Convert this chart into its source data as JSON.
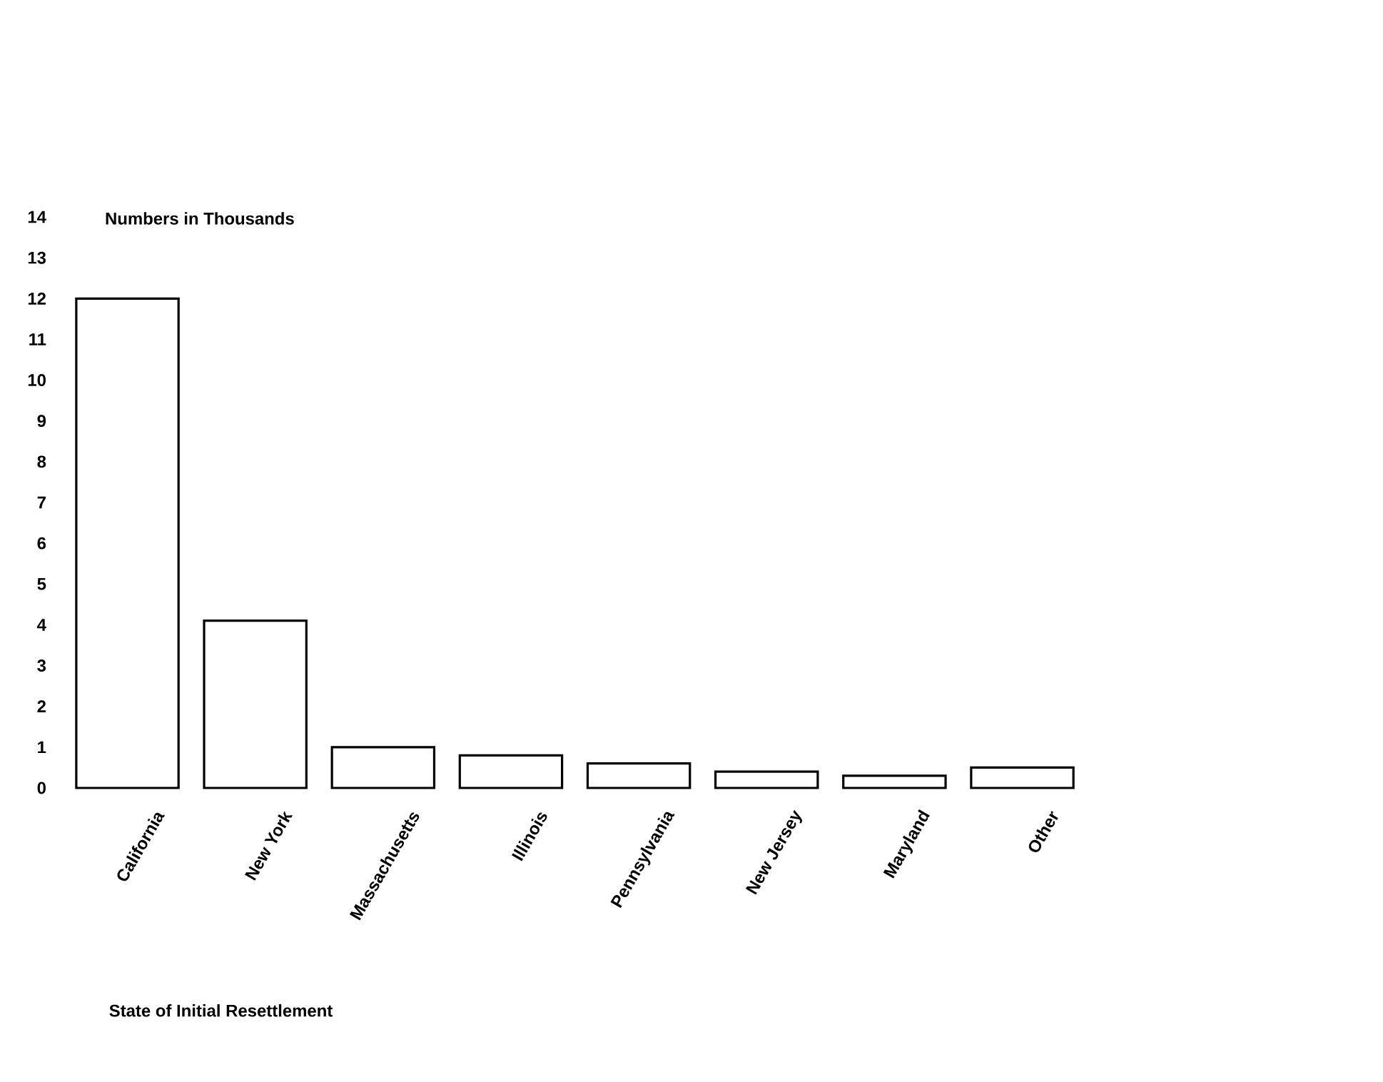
{
  "chart_data": {
    "type": "bar",
    "ylabel": "Numbers in Thousands",
    "xlabel": "State of Initial Resettlement",
    "categories": [
      "California",
      "New York",
      "Massachusetts",
      "Illinois",
      "Pennsylvania",
      "New Jersey",
      "Maryland",
      "Other"
    ],
    "values": [
      12,
      4.1,
      1.0,
      0.8,
      0.6,
      0.4,
      0.3,
      0.5
    ],
    "color": "#ffffff",
    "ylim": [
      0,
      14
    ],
    "yticks": [
      0,
      1,
      2,
      3,
      4,
      5,
      6,
      7,
      8,
      9,
      10,
      11,
      12,
      13,
      14
    ]
  }
}
